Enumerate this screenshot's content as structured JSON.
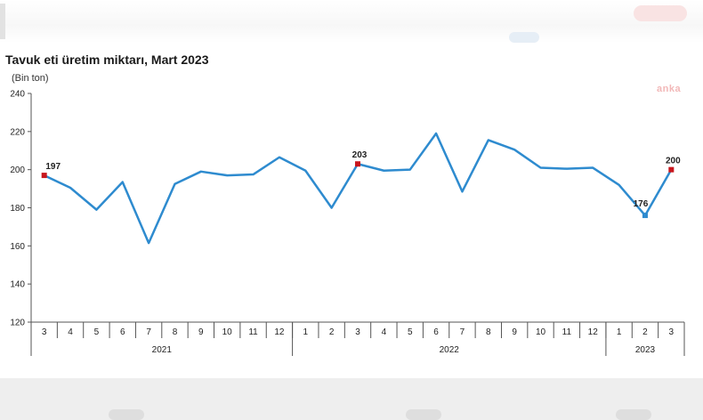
{
  "chart_title": "Tavuk eti üretim miktarı, Mart 2023",
  "watermark": "anka",
  "chart_data": {
    "type": "line",
    "title": "Tavuk eti üretim miktarı, Mart 2023",
    "ylabel": "(Bin ton)",
    "xlabel": "",
    "ylim": [
      120,
      240
    ],
    "yticks": [
      "120",
      "140",
      "160",
      "180",
      "200",
      "220",
      "240"
    ],
    "categories": [
      "3",
      "4",
      "5",
      "6",
      "7",
      "8",
      "9",
      "10",
      "11",
      "12",
      "1",
      "2",
      "3",
      "4",
      "5",
      "6",
      "7",
      "8",
      "9",
      "10",
      "11",
      "12",
      "1",
      "2",
      "3"
    ],
    "year_groups": [
      {
        "label": "2021",
        "count": 10
      },
      {
        "label": "2022",
        "count": 12
      },
      {
        "label": "2023",
        "count": 3
      }
    ],
    "series": [
      {
        "values": [
          197,
          190.5,
          179,
          193.5,
          161.5,
          192.5,
          199,
          197,
          197.5,
          206.5,
          199.5,
          180,
          203,
          199.5,
          200,
          219,
          188.5,
          215.5,
          210.5,
          201,
          200.5,
          201,
          192,
          176,
          200
        ]
      }
    ],
    "labeled_points": [
      {
        "index": 0,
        "label": "197"
      },
      {
        "index": 12,
        "label": "203"
      },
      {
        "index": 23,
        "label": "176"
      },
      {
        "index": 24,
        "label": "200"
      }
    ],
    "colors": {
      "line": "#2e8bcf",
      "marker": "#c8161d",
      "axis": "#555555"
    },
    "grid": false,
    "legend": "none"
  }
}
